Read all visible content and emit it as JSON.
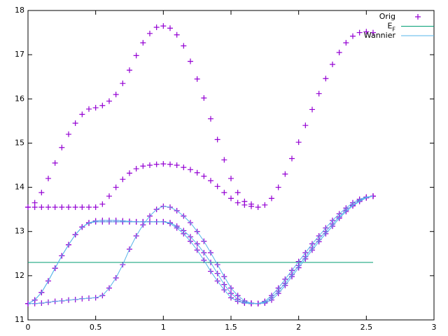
{
  "chart_data": {
    "type": "line",
    "xlim": [
      0,
      3
    ],
    "xticks": [
      0,
      0.5,
      1,
      1.5,
      2,
      2.5,
      3
    ],
    "ylim": [
      11,
      18
    ],
    "yticks": [
      11,
      12,
      13,
      14,
      15,
      16,
      17,
      18
    ],
    "grid": false,
    "legend": "top-right",
    "x": [
      0,
      0.05,
      0.1,
      0.15,
      0.2,
      0.25,
      0.3,
      0.35,
      0.4,
      0.45,
      0.5,
      0.55,
      0.6,
      0.65,
      0.7,
      0.75,
      0.8,
      0.85,
      0.9,
      0.95,
      1,
      1.05,
      1.1,
      1.15,
      1.2,
      1.25,
      1.3,
      1.35,
      1.4,
      1.45,
      1.5,
      1.55,
      1.6,
      1.65,
      1.7,
      1.75,
      1.8,
      1.85,
      1.9,
      1.95,
      2,
      2.05,
      2.1,
      2.15,
      2.2,
      2.25,
      2.3,
      2.35,
      2.4,
      2.45,
      2.5,
      2.55
    ],
    "series": [
      {
        "name": "Orig",
        "color": "#9400d3",
        "style": "points",
        "values": [
          13.55,
          13.55,
          13.55,
          13.55,
          13.55,
          13.55,
          13.55,
          13.55,
          13.55,
          13.55,
          13.55,
          13.62,
          13.8,
          14.0,
          14.18,
          14.32,
          14.42,
          14.48,
          14.5,
          14.52,
          14.53,
          14.52,
          14.5,
          14.45,
          14.4,
          14.33,
          14.25,
          14.15,
          14.02,
          13.88,
          13.75,
          13.65,
          13.6,
          13.57,
          13.55,
          13.6,
          13.75,
          14.0,
          14.3,
          14.65,
          15.02,
          15.4,
          15.76,
          16.12,
          16.46,
          16.78,
          17.05,
          17.27,
          17.42,
          17.5,
          17.52,
          17.5
        ]
      },
      {
        "color": "#9400d3",
        "style": "points",
        "values": [
          13.55,
          13.65,
          13.88,
          14.2,
          14.55,
          14.9,
          15.2,
          15.45,
          15.65,
          15.77,
          15.8,
          15.85,
          15.95,
          16.1,
          16.35,
          16.65,
          16.98,
          17.27,
          17.48,
          17.62,
          17.65,
          17.6,
          17.45,
          17.2,
          16.85,
          16.45,
          16.02,
          15.55,
          15.08,
          14.62,
          14.2,
          13.88,
          13.68,
          13.62,
          null,
          null,
          null,
          null,
          null,
          null,
          null,
          null,
          null,
          null,
          null,
          null,
          null,
          null,
          null,
          null,
          null,
          null
        ]
      },
      {
        "color": "#9400d3",
        "style": "points",
        "values": [
          11.37,
          11.45,
          11.62,
          11.88,
          12.17,
          12.45,
          12.7,
          12.93,
          13.1,
          13.2,
          13.24,
          13.25,
          13.25,
          13.25,
          13.24,
          13.23,
          13.22,
          13.22,
          13.22,
          13.22,
          13.22,
          13.18,
          13.08,
          12.95,
          12.78,
          12.58,
          12.35,
          12.1,
          11.88,
          11.68,
          11.5,
          11.42,
          11.38,
          11.37,
          11.37,
          11.42,
          11.55,
          11.72,
          11.92,
          12.12,
          12.32,
          12.52,
          12.72,
          12.9,
          13.08,
          13.25,
          13.4,
          13.53,
          13.65,
          13.73,
          13.78,
          13.8
        ]
      },
      {
        "color": "#9400d3",
        "style": "points",
        "values": [
          11.37,
          11.37,
          11.38,
          11.4,
          11.42,
          11.43,
          11.45,
          11.46,
          11.48,
          11.49,
          11.5,
          11.55,
          11.72,
          11.95,
          12.25,
          12.6,
          12.9,
          13.15,
          13.35,
          13.5,
          13.57,
          13.55,
          13.47,
          13.35,
          13.2,
          13.0,
          12.78,
          12.52,
          12.25,
          11.98,
          11.72,
          11.55,
          11.43,
          11.38,
          11.37,
          11.38,
          11.45,
          11.6,
          11.78,
          11.98,
          12.18,
          12.38,
          12.58,
          12.77,
          12.95,
          13.12,
          13.3,
          13.45,
          13.58,
          13.68,
          13.76,
          13.8
        ]
      },
      {
        "color": "#9400d3",
        "style": "points",
        "values": [
          11.37,
          11.45,
          11.62,
          11.88,
          12.17,
          12.45,
          12.7,
          12.93,
          13.1,
          13.19,
          13.22,
          13.22,
          13.22,
          13.22,
          13.22,
          13.22,
          13.22,
          13.22,
          13.22,
          13.22,
          13.22,
          13.2,
          13.12,
          13.02,
          12.88,
          12.72,
          12.52,
          12.3,
          12.05,
          11.8,
          11.6,
          11.47,
          11.4,
          11.37,
          11.37,
          11.4,
          11.5,
          11.65,
          11.83,
          12.03,
          12.23,
          12.43,
          12.63,
          12.82,
          13.0,
          13.17,
          13.33,
          13.48,
          13.6,
          13.7,
          13.77,
          13.8
        ]
      },
      {
        "name": "E_F",
        "color": "#009e73",
        "style": "line",
        "x": [
          0,
          2.55
        ],
        "values": [
          12.3,
          12.3
        ]
      },
      {
        "name": "Wannier",
        "color": "#56b4e9",
        "style": "line",
        "values": [
          11.37,
          11.45,
          11.62,
          11.88,
          12.17,
          12.45,
          12.7,
          12.93,
          13.1,
          13.2,
          13.24,
          13.25,
          13.25,
          13.25,
          13.24,
          13.23,
          13.22,
          13.22,
          13.22,
          13.22,
          13.22,
          13.18,
          13.08,
          12.95,
          12.78,
          12.58,
          12.35,
          12.1,
          11.88,
          11.68,
          11.5,
          11.42,
          11.38,
          11.37,
          11.37,
          11.42,
          11.55,
          11.72,
          11.92,
          12.12,
          12.32,
          12.52,
          12.72,
          12.9,
          13.08,
          13.25,
          13.4,
          13.53,
          13.65,
          13.73,
          13.78,
          13.8
        ]
      },
      {
        "color": "#56b4e9",
        "style": "line",
        "values": [
          11.37,
          11.37,
          11.38,
          11.4,
          11.42,
          11.43,
          11.45,
          11.46,
          11.48,
          11.49,
          11.5,
          11.55,
          11.72,
          11.95,
          12.25,
          12.6,
          12.9,
          13.15,
          13.35,
          13.5,
          13.57,
          13.55,
          13.47,
          13.35,
          13.2,
          13.0,
          12.78,
          12.52,
          12.25,
          11.98,
          11.72,
          11.55,
          11.43,
          11.38,
          11.37,
          11.38,
          11.45,
          11.6,
          11.78,
          11.98,
          12.18,
          12.38,
          12.58,
          12.77,
          12.95,
          13.12,
          13.3,
          13.45,
          13.58,
          13.68,
          13.76,
          13.8
        ]
      },
      {
        "color": "#56b4e9",
        "style": "line",
        "values": [
          11.37,
          11.45,
          11.62,
          11.88,
          12.17,
          12.45,
          12.7,
          12.93,
          13.1,
          13.19,
          13.22,
          13.22,
          13.22,
          13.22,
          13.22,
          13.22,
          13.22,
          13.22,
          13.22,
          13.22,
          13.22,
          13.2,
          13.12,
          13.02,
          12.88,
          12.72,
          12.52,
          12.3,
          12.05,
          11.8,
          11.6,
          11.47,
          11.4,
          11.37,
          11.37,
          11.4,
          11.5,
          11.65,
          11.83,
          12.03,
          12.23,
          12.43,
          12.63,
          12.82,
          13.0,
          13.17,
          13.33,
          13.48,
          13.6,
          13.7,
          13.77,
          13.8
        ]
      }
    ]
  }
}
